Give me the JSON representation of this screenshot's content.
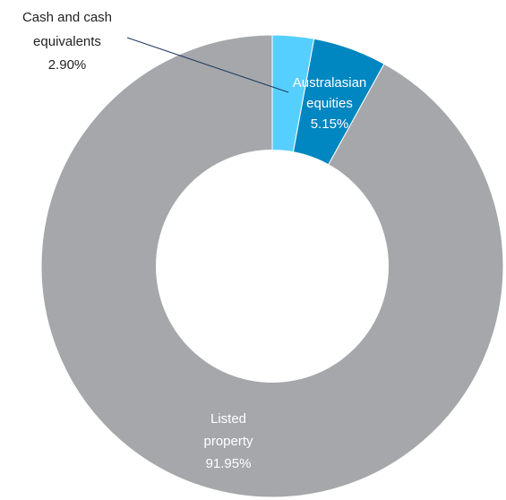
{
  "chart_data": {
    "type": "pie",
    "style": "donut",
    "title": "",
    "slices": [
      {
        "label_lines": [
          "Cash and cash",
          "equivalents"
        ],
        "value_label": "2.90%",
        "value": 2.9,
        "color": "#55cfff",
        "label_color": "#222222"
      },
      {
        "label_lines": [
          "Australasian",
          "equities"
        ],
        "value_label": "5.15%",
        "value": 5.15,
        "color": "#0086c0",
        "label_color": "#ffffff"
      },
      {
        "label_lines": [
          "Listed",
          "property"
        ],
        "value_label": "91.95%",
        "value": 91.95,
        "color": "#a5a7aa",
        "label_color": "#ffffff"
      }
    ],
    "start": "12 o'clock",
    "direction": "clockwise"
  }
}
